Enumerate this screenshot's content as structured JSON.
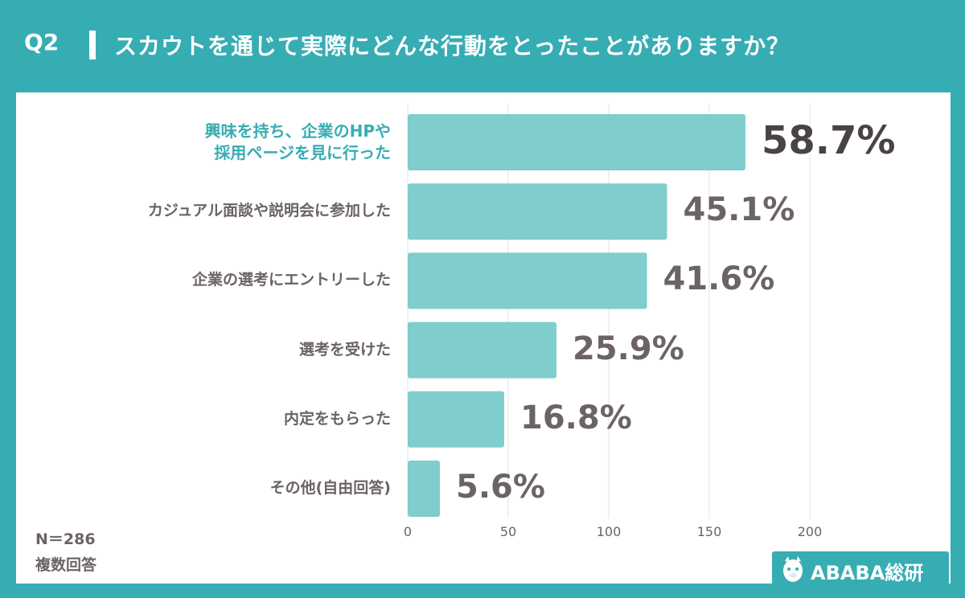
{
  "header": {
    "question_label": "Q2",
    "title": "スカウトを通じて実際にどんな行動をとったことがありますか？"
  },
  "notes": {
    "sample": "N＝286",
    "multi": "複数回答"
  },
  "brand": {
    "name": "ABABA総研",
    "logo_icon": "alpaca-logo-icon"
  },
  "colors": {
    "background": "#36adb3",
    "bar": "#7fcdcc",
    "highlight_text": "#36adb3",
    "text": "#6b6365"
  },
  "chart_data": {
    "type": "bar",
    "orientation": "horizontal",
    "categories": [
      [
        "興味を持ち、企業のHPや",
        "採用ページを見に行った"
      ],
      [
        "カジュアル面談や説明会に参加した"
      ],
      [
        "企業の選考にエントリーした"
      ],
      [
        "選考を受けた"
      ],
      [
        "内定をもらった"
      ],
      [
        "その他(自由回答)"
      ]
    ],
    "values": [
      168,
      129,
      119,
      74,
      48,
      16
    ],
    "value_labels": [
      "58.7%",
      "45.1%",
      "41.6%",
      "25.9%",
      "16.8%",
      "5.6%"
    ],
    "xlim": [
      0,
      230
    ],
    "xticks": [
      0,
      50,
      100,
      150,
      200
    ],
    "grid": "vertical",
    "highlight_index": 0
  }
}
